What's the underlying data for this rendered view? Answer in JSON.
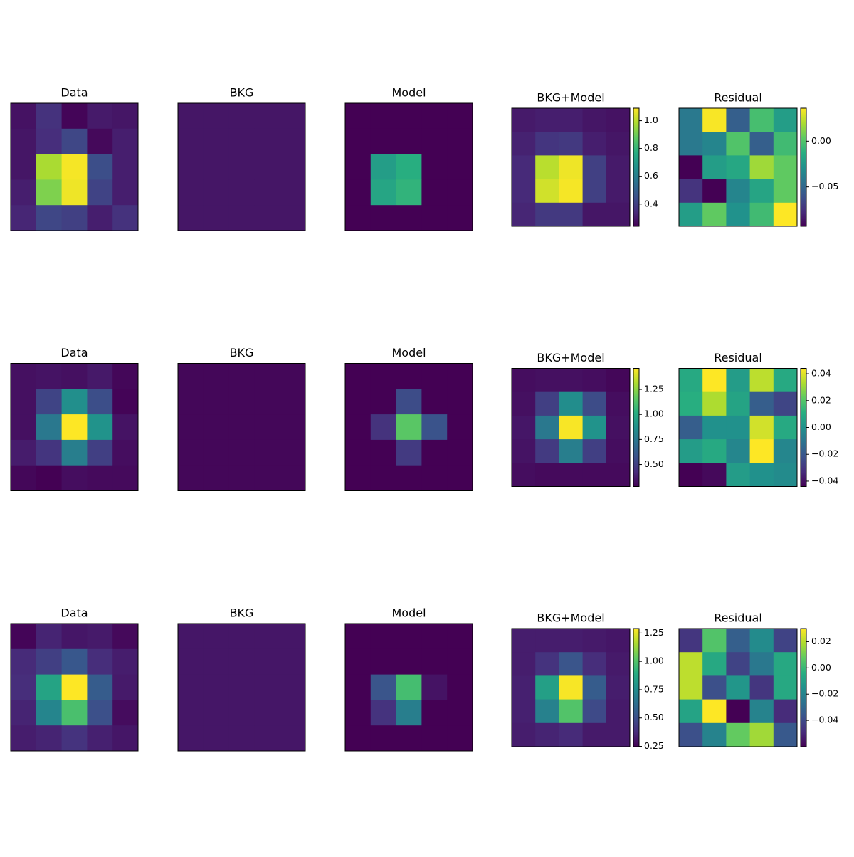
{
  "chart_data": [
    {
      "type": "heatmap",
      "title": "Data",
      "colormap": "viridis",
      "clim": [
        0.24,
        1.09
      ],
      "values": [
        [
          0.28,
          0.36,
          0.25,
          0.3,
          0.29
        ],
        [
          0.29,
          0.35,
          0.42,
          0.26,
          0.31
        ],
        [
          0.29,
          0.98,
          1.08,
          0.44,
          0.31
        ],
        [
          0.31,
          0.92,
          1.07,
          0.41,
          0.31
        ],
        [
          0.33,
          0.42,
          0.4,
          0.31,
          0.36
        ]
      ]
    },
    {
      "type": "heatmap",
      "title": "BKG",
      "colormap": "viridis",
      "clim": [
        0.24,
        1.09
      ],
      "values": [
        [
          0.29,
          0.29,
          0.29,
          0.29,
          0.29
        ],
        [
          0.29,
          0.29,
          0.29,
          0.29,
          0.29
        ],
        [
          0.29,
          0.29,
          0.29,
          0.29,
          0.29
        ],
        [
          0.29,
          0.29,
          0.29,
          0.29,
          0.29
        ],
        [
          0.29,
          0.29,
          0.29,
          0.29,
          0.29
        ]
      ]
    },
    {
      "type": "heatmap",
      "title": "Model",
      "colormap": "viridis",
      "clim": [
        0.24,
        1.09
      ],
      "values": [
        [
          0,
          0,
          0,
          0,
          0
        ],
        [
          0,
          0,
          0,
          0,
          0
        ],
        [
          0,
          0.71,
          0.77,
          0,
          0
        ],
        [
          0,
          0.74,
          0.79,
          0,
          0
        ],
        [
          0,
          0,
          0,
          0,
          0
        ]
      ]
    },
    {
      "type": "heatmap",
      "title": "BKG+Model",
      "colormap": "viridis",
      "clim": [
        0.24,
        1.09
      ],
      "values": [
        [
          0.3,
          0.31,
          0.31,
          0.29,
          0.28
        ],
        [
          0.32,
          0.37,
          0.38,
          0.31,
          0.29
        ],
        [
          0.34,
          1.0,
          1.07,
          0.4,
          0.3
        ],
        [
          0.34,
          1.03,
          1.08,
          0.4,
          0.3
        ],
        [
          0.33,
          0.38,
          0.38,
          0.29,
          0.29
        ]
      ],
      "cticks": [
        0.4,
        0.6,
        0.8,
        {
          "value": 1.0,
          "label": "1.0"
        }
      ]
    },
    {
      "type": "heatmap",
      "title": "Residual",
      "colormap": "viridis",
      "clim": [
        -0.093,
        0.036
      ],
      "values": [
        [
          -0.041,
          0.035,
          -0.054,
          -0.003,
          -0.022
        ],
        [
          -0.041,
          -0.035,
          0.0,
          -0.054,
          -0.005
        ],
        [
          -0.093,
          -0.022,
          -0.016,
          0.017,
          0.004
        ],
        [
          -0.074,
          -0.093,
          -0.035,
          -0.018,
          0.004
        ],
        [
          -0.022,
          0.004,
          -0.028,
          -0.005,
          0.036
        ]
      ],
      "cticks": [
        {
          "value": -0.05,
          "label": "−0.05"
        },
        {
          "value": 0,
          "label": "0.00"
        }
      ]
    },
    {
      "type": "heatmap",
      "title": "Data",
      "colormap": "viridis",
      "clim": [
        0.28,
        1.46
      ],
      "values": [
        [
          0.33,
          0.34,
          0.33,
          0.36,
          0.3
        ],
        [
          0.33,
          0.52,
          0.86,
          0.56,
          0.29
        ],
        [
          0.33,
          0.75,
          1.46,
          0.88,
          0.34
        ],
        [
          0.37,
          0.46,
          0.78,
          0.5,
          0.32
        ],
        [
          0.3,
          0.28,
          0.32,
          0.31,
          0.31
        ]
      ]
    },
    {
      "type": "heatmap",
      "title": "BKG",
      "colormap": "viridis",
      "clim": [
        0.28,
        1.46
      ],
      "values": [
        [
          0.3,
          0.3,
          0.3,
          0.3,
          0.3
        ],
        [
          0.3,
          0.3,
          0.3,
          0.3,
          0.3
        ],
        [
          0.3,
          0.3,
          0.3,
          0.3,
          0.3
        ],
        [
          0.3,
          0.3,
          0.3,
          0.3,
          0.3
        ],
        [
          0.3,
          0.3,
          0.3,
          0.3,
          0.3
        ]
      ]
    },
    {
      "type": "heatmap",
      "title": "Model",
      "colormap": "viridis",
      "clim": [
        0.28,
        1.46
      ],
      "values": [
        [
          0,
          0,
          0,
          0,
          0
        ],
        [
          0,
          0,
          0.55,
          0,
          0
        ],
        [
          0,
          0.45,
          1.15,
          0.58,
          0
        ],
        [
          0,
          0,
          0.48,
          0,
          0
        ],
        [
          0,
          0,
          0,
          0,
          0
        ]
      ]
    },
    {
      "type": "heatmap",
      "title": "BKG+Model",
      "colormap": "viridis",
      "clim": [
        0.28,
        1.46
      ],
      "values": [
        [
          0.32,
          0.33,
          0.33,
          0.32,
          0.3
        ],
        [
          0.33,
          0.5,
          0.85,
          0.55,
          0.32
        ],
        [
          0.35,
          0.75,
          1.45,
          0.88,
          0.33
        ],
        [
          0.34,
          0.48,
          0.78,
          0.5,
          0.32
        ],
        [
          0.32,
          0.31,
          0.31,
          0.31,
          0.31
        ]
      ],
      "cticks": [
        {
          "value": 0.5,
          "label": "0.50"
        },
        0.75,
        {
          "value": 1.0,
          "label": "1.00"
        },
        1.25
      ]
    },
    {
      "type": "heatmap",
      "title": "Residual",
      "colormap": "viridis",
      "clim": [
        -0.044,
        0.044
      ],
      "values": [
        [
          0.009,
          0.044,
          0.004,
          0.035,
          0.009
        ],
        [
          0.011,
          0.033,
          0.007,
          -0.018,
          -0.026
        ],
        [
          -0.018,
          0.0,
          0.0,
          0.038,
          0.009
        ],
        [
          0.004,
          0.009,
          -0.004,
          0.044,
          -0.004
        ],
        [
          -0.044,
          -0.042,
          0.004,
          0.0,
          -0.002
        ]
      ],
      "cticks": [
        {
          "value": -0.04,
          "label": "−0.04"
        },
        {
          "value": -0.02,
          "label": "−0.02"
        },
        {
          "value": 0,
          "label": "0.00"
        },
        0.02,
        0.04
      ]
    },
    {
      "type": "heatmap",
      "title": "Data",
      "colormap": "viridis",
      "clim": [
        0.247,
        1.29
      ],
      "values": [
        [
          0.26,
          0.35,
          0.31,
          0.32,
          0.27
        ],
        [
          0.37,
          0.44,
          0.53,
          0.38,
          0.33
        ],
        [
          0.38,
          0.85,
          1.29,
          0.55,
          0.32
        ],
        [
          0.35,
          0.72,
          0.98,
          0.5,
          0.28
        ],
        [
          0.33,
          0.35,
          0.4,
          0.34,
          0.31
        ]
      ]
    },
    {
      "type": "heatmap",
      "title": "BKG",
      "colormap": "viridis",
      "clim": [
        0.247,
        1.29
      ],
      "values": [
        [
          0.31,
          0.31,
          0.31,
          0.31,
          0.31
        ],
        [
          0.31,
          0.31,
          0.31,
          0.31,
          0.31
        ],
        [
          0.31,
          0.31,
          0.31,
          0.31,
          0.31
        ],
        [
          0.31,
          0.31,
          0.31,
          0.31,
          0.31
        ],
        [
          0.31,
          0.31,
          0.31,
          0.31,
          0.31
        ]
      ]
    },
    {
      "type": "heatmap",
      "title": "Model",
      "colormap": "viridis",
      "clim": [
        0.247,
        1.29
      ],
      "values": [
        [
          0,
          0,
          0,
          0,
          0
        ],
        [
          0,
          0,
          0,
          0,
          0
        ],
        [
          0,
          0.52,
          0.97,
          0.3,
          0
        ],
        [
          0,
          0.4,
          0.69,
          0,
          0
        ],
        [
          0,
          0,
          0,
          0,
          0
        ]
      ]
    },
    {
      "type": "heatmap",
      "title": "BKG+Model",
      "colormap": "viridis",
      "clim": [
        0.247,
        1.29
      ],
      "values": [
        [
          0.33,
          0.33,
          0.33,
          0.32,
          0.31
        ],
        [
          0.33,
          0.4,
          0.52,
          0.38,
          0.32
        ],
        [
          0.34,
          0.83,
          1.28,
          0.55,
          0.33
        ],
        [
          0.34,
          0.7,
          1.0,
          0.48,
          0.32
        ],
        [
          0.33,
          0.35,
          0.37,
          0.32,
          0.32
        ]
      ],
      "cticks": [
        0.25,
        {
          "value": 0.5,
          "label": "0.50"
        },
        0.75,
        {
          "value": 1.0,
          "label": "1.00"
        },
        1.25
      ]
    },
    {
      "type": "heatmap",
      "title": "Residual",
      "colormap": "viridis",
      "clim": [
        -0.06,
        0.03
      ],
      "values": [
        [
          -0.046,
          0.005,
          -0.033,
          -0.017,
          -0.042
        ],
        [
          0.021,
          -0.006,
          -0.042,
          -0.024,
          -0.006
        ],
        [
          0.021,
          -0.038,
          -0.013,
          -0.046,
          -0.006
        ],
        [
          -0.008,
          0.03,
          -0.06,
          -0.02,
          -0.049
        ],
        [
          -0.038,
          -0.02,
          0.008,
          0.017,
          -0.035
        ]
      ],
      "cticks": [
        {
          "value": -0.04,
          "label": "−0.04"
        },
        {
          "value": -0.02,
          "label": "−0.02"
        },
        {
          "value": 0,
          "label": "0.00"
        },
        0.02
      ]
    }
  ]
}
